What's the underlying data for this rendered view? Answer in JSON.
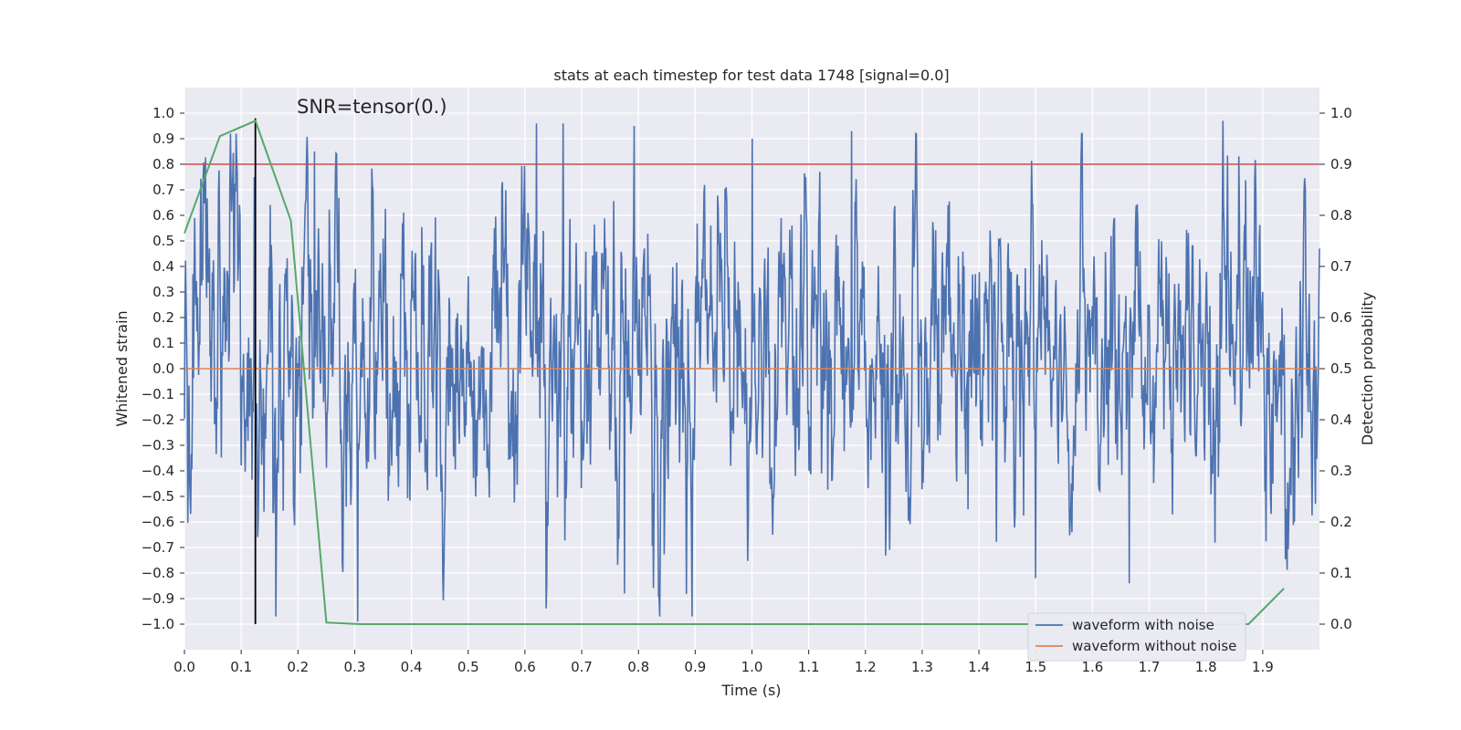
{
  "chart_data": {
    "type": "line",
    "title": "stats at each timestep for test data 1748 [signal=0.0]",
    "xlabel": "Time (s)",
    "ylabel": "Whitened strain",
    "ylabel_right": "Detection probability",
    "annotation": "SNR=tensor(0.)",
    "xlim": [
      0.0,
      2.0
    ],
    "ylim": [
      -1.1,
      1.1
    ],
    "ylim_right": [
      -0.05,
      1.05
    ],
    "x_ticks": [
      "0.0",
      "0.1",
      "0.2",
      "0.3",
      "0.4",
      "0.5",
      "0.6",
      "0.7",
      "0.8",
      "0.9",
      "1.0",
      "1.1",
      "1.2",
      "1.3",
      "1.4",
      "1.5",
      "1.6",
      "1.7",
      "1.8",
      "1.9"
    ],
    "y_ticks": [
      "1.0",
      "0.9",
      "0.8",
      "0.7",
      "0.6",
      "0.5",
      "0.4",
      "0.3",
      "0.2",
      "0.1",
      "0.0",
      "−0.1",
      "−0.2",
      "−0.3",
      "−0.4",
      "−0.5",
      "−0.6",
      "−0.7",
      "−0.8",
      "−0.9",
      "−1.0"
    ],
    "y_right_ticks": [
      "1.0",
      "0.9",
      "0.8",
      "0.7",
      "0.6",
      "0.5",
      "0.4",
      "0.3",
      "0.2",
      "0.1",
      "0.0"
    ],
    "grid": true,
    "legend_position": "lower-right",
    "colors": {
      "noise": "#4c72b0",
      "clean": "#dd8452",
      "prob": "#55a868",
      "threshold": "#c44e52",
      "marker": "#000000",
      "background": "#eaeaf2"
    },
    "series": [
      {
        "name": "waveform with noise",
        "axis": "left",
        "sample_count": 2000,
        "style": "dense noise, mostly between -0.6 and 0.7",
        "x_range": [
          0.0,
          2.0
        ],
        "notable_peaks": [
          {
            "x": 0.123,
            "y": 0.75
          },
          {
            "x": 0.229,
            "y": 0.85
          },
          {
            "x": 0.305,
            "y": -0.99
          },
          {
            "x": 0.62,
            "y": 0.96
          },
          {
            "x": 0.667,
            "y": 0.96
          },
          {
            "x": 0.775,
            "y": -0.88
          },
          {
            "x": 0.792,
            "y": 0.95
          },
          {
            "x": 1.0,
            "y": 0.9
          },
          {
            "x": 1.176,
            "y": 0.93
          },
          {
            "x": 1.5,
            "y": -0.82
          },
          {
            "x": 1.665,
            "y": -0.84
          },
          {
            "x": 1.83,
            "y": 0.97
          }
        ]
      },
      {
        "name": "waveform without noise",
        "axis": "left",
        "x": [
          0.0,
          2.0
        ],
        "y": [
          0.0,
          0.0
        ]
      },
      {
        "name": "detection probability",
        "axis": "right",
        "x": [
          0.0,
          0.0625,
          0.125,
          0.1875,
          0.25,
          0.3125,
          1.875,
          1.9375
        ],
        "y": [
          0.765,
          0.955,
          0.985,
          0.79,
          0.003,
          0.0,
          0.0,
          0.07
        ]
      }
    ],
    "threshold_line": {
      "axis": "right",
      "y": 0.9
    },
    "vertical_marker": {
      "x": 0.125
    },
    "legend": [
      "waveform with noise",
      "waveform without noise"
    ]
  }
}
